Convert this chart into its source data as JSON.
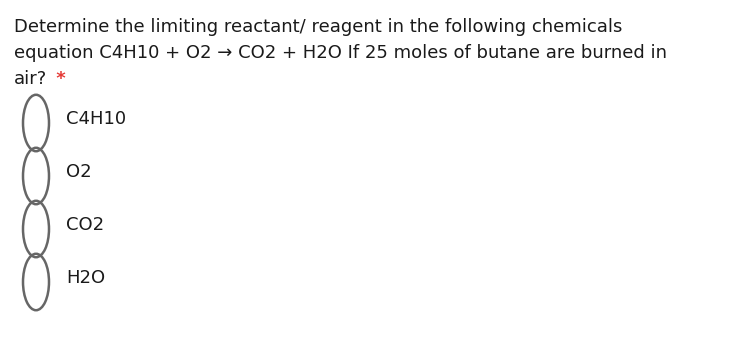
{
  "background_color": "#ffffff",
  "question_line1": "Determine the limiting reactant/ reagent in the following chemicals",
  "question_line2": "equation C4H10 + O2 → CO2 + H2O If 25 moles of butane are burned in",
  "question_line3": "air?",
  "asterisk": " *",
  "options": [
    "C4H10",
    "O2",
    "CO2",
    "H2O"
  ],
  "text_color": "#1a1a1a",
  "asterisk_color": "#e53935",
  "circle_edge_color": "#666666",
  "font_size_question": 13.0,
  "font_size_options": 13.0,
  "fig_width": 7.36,
  "fig_height": 3.39,
  "dpi": 100
}
